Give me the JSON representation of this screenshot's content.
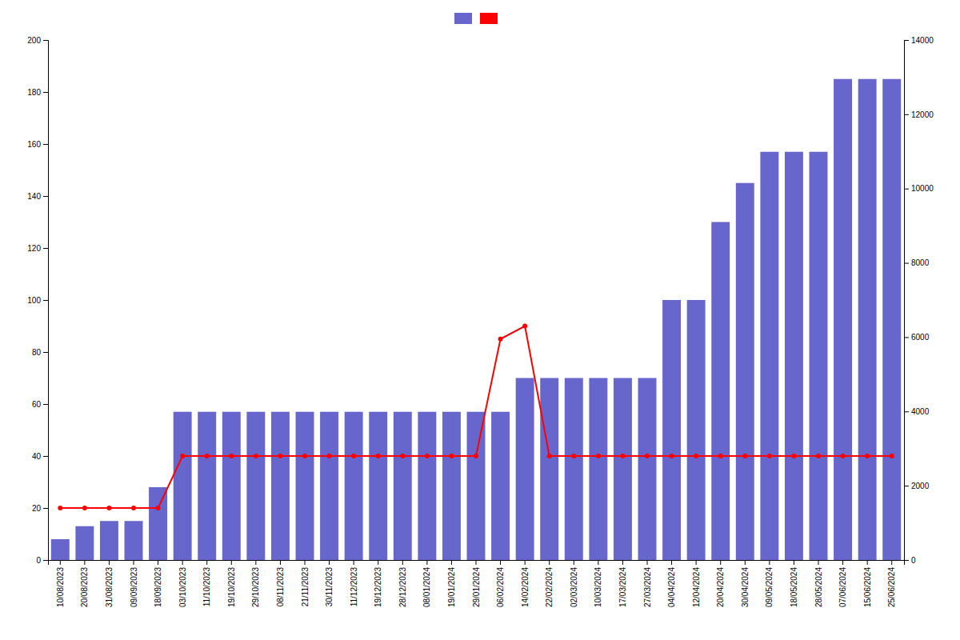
{
  "chart_data": {
    "type": "bar",
    "categories": [
      "10/08/2023",
      "20/08/2023",
      "31/08/2023",
      "09/09/2023",
      "18/09/2023",
      "03/10/2023",
      "11/10/2023",
      "19/10/2023",
      "29/10/2023",
      "08/11/2023",
      "21/11/2023",
      "30/11/2023",
      "11/12/2023",
      "19/12/2023",
      "28/12/2023",
      "08/01/2024",
      "19/01/2024",
      "29/01/2024",
      "06/02/2024",
      "14/02/2024",
      "22/02/2024",
      "02/03/2024",
      "10/03/2024",
      "17/03/2024",
      "27/03/2024",
      "04/04/2024",
      "12/04/2024",
      "20/04/2024",
      "30/04/2024",
      "09/05/2024",
      "18/05/2024",
      "28/05/2024",
      "07/06/2024",
      "15/06/2024",
      "25/06/2024"
    ],
    "series": [
      {
        "type": "bar",
        "color": "#6666cc",
        "values": [
          8,
          13,
          15,
          15,
          28,
          57,
          57,
          57,
          57,
          57,
          57,
          57,
          57,
          57,
          57,
          57,
          57,
          57,
          57,
          70,
          70,
          70,
          70,
          70,
          70,
          100,
          100,
          130,
          145,
          157,
          157,
          157,
          185,
          185,
          185
        ]
      },
      {
        "type": "line",
        "color": "#ff0000",
        "marker": "circle",
        "values": [
          20,
          20,
          20,
          20,
          20,
          40,
          40,
          40,
          40,
          40,
          40,
          40,
          40,
          40,
          40,
          40,
          40,
          40,
          85,
          90,
          40,
          40,
          40,
          40,
          40,
          40,
          40,
          40,
          40,
          40,
          40,
          40,
          40,
          40,
          40
        ]
      }
    ],
    "ylim": [
      0,
      200
    ],
    "yticks": [
      0,
      20,
      40,
      60,
      80,
      100,
      120,
      140,
      160,
      180,
      200
    ],
    "y2lim": [
      0,
      14000
    ],
    "y2ticks": [
      0,
      2000,
      4000,
      6000,
      8000,
      10000,
      12000,
      14000
    ],
    "grid": false,
    "legend": "top"
  }
}
